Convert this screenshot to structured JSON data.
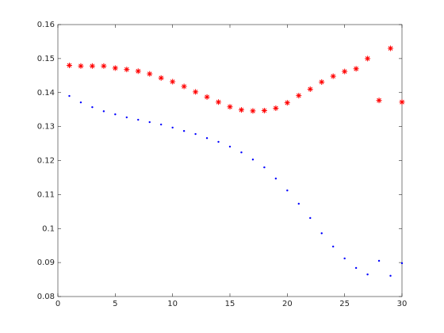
{
  "chart_data": {
    "type": "scatter",
    "x": [
      1,
      2,
      3,
      4,
      5,
      6,
      7,
      8,
      9,
      10,
      11,
      12,
      13,
      14,
      15,
      16,
      17,
      18,
      19,
      20,
      21,
      22,
      23,
      24,
      25,
      26,
      27,
      28,
      29,
      30
    ],
    "series": [
      {
        "color": "#ff0000",
        "marker": "asterisk",
        "values": [
          0.148,
          0.1478,
          0.1478,
          0.1478,
          0.1472,
          0.1468,
          0.1463,
          0.1455,
          0.1443,
          0.1432,
          0.1418,
          0.1402,
          0.1387,
          0.1372,
          0.1358,
          0.1349,
          0.1346,
          0.1347,
          0.1354,
          0.137,
          0.1391,
          0.141,
          0.1431,
          0.1448,
          0.1462,
          0.147,
          0.15,
          0.1377,
          0.153,
          0.1372
        ]
      },
      {
        "color": "#0000ff",
        "marker": "point",
        "values": [
          0.139,
          0.1371,
          0.1357,
          0.1345,
          0.1336,
          0.1327,
          0.132,
          0.1313,
          0.1306,
          0.1297,
          0.1287,
          0.1278,
          0.1266,
          0.1255,
          0.1241,
          0.1224,
          0.1203,
          0.118,
          0.1147,
          0.1112,
          0.1073,
          0.1031,
          0.0986,
          0.0947,
          0.0912,
          0.0884,
          0.0865,
          0.0905,
          0.0861,
          0.0898
        ]
      }
    ],
    "xlim": [
      0,
      30
    ],
    "xticks": [
      0,
      5,
      10,
      15,
      20,
      25,
      30
    ],
    "ylim": [
      0.08,
      0.16
    ],
    "yticks": [
      0.08,
      0.09,
      0.1,
      0.11,
      0.12,
      0.13,
      0.14,
      0.15,
      0.16
    ],
    "grid": false
  }
}
